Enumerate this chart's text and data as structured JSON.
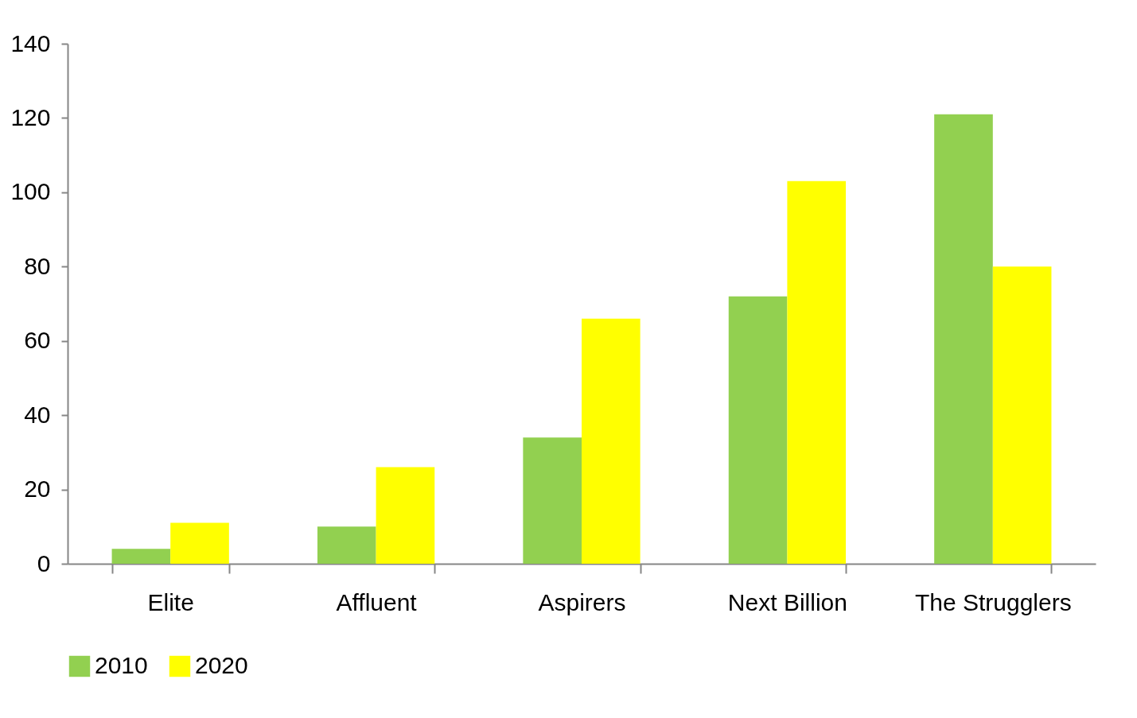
{
  "chart_data": {
    "type": "bar",
    "categories": [
      "Elite",
      "Affluent",
      "Aspirers",
      "Next Billion",
      "The Strugglers"
    ],
    "series": [
      {
        "name": "2010",
        "color": "#92d050",
        "values": [
          4,
          10,
          34,
          72,
          121
        ]
      },
      {
        "name": "2020",
        "color": "#ffff00",
        "values": [
          11,
          26,
          66,
          103,
          80
        ]
      }
    ],
    "ylim": [
      0,
      140
    ],
    "yticks": [
      0,
      20,
      40,
      60,
      80,
      100,
      120,
      140
    ],
    "grid": false,
    "legend": "bottom"
  }
}
